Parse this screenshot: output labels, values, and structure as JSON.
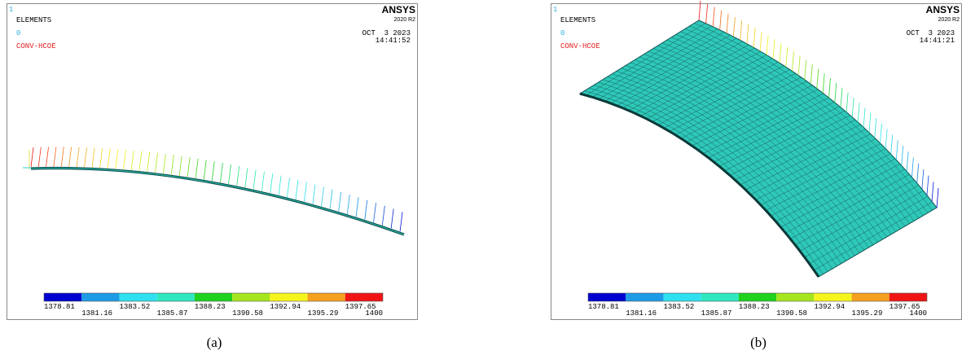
{
  "panels": [
    {
      "frame_number": "1",
      "title": "ELEMENTS",
      "step": "0",
      "label": "CONV-HCOE",
      "brand": "ANSYS",
      "version": "2020 R2",
      "date": "OCT  3 2023",
      "time": "14:41:52",
      "legend": {
        "labels": [
          1378.81,
          1381.16,
          1383.52,
          1385.87,
          1388.23,
          1390.58,
          1392.94,
          1395.29,
          1397.65,
          1400
        ],
        "colors": [
          "#0000d0",
          "#1e9be6",
          "#2fe0f0",
          "#2fe8c0",
          "#1ed21e",
          "#a6e61e",
          "#f5f51e",
          "#f5a01e",
          "#f01414"
        ]
      },
      "caption": "(a)"
    },
    {
      "frame_number": "1",
      "title": "ELEMENTS",
      "step": "0",
      "label": "CONV-HCOE",
      "brand": "ANSYS",
      "version": "2020 R2",
      "date": "OCT  3 2023",
      "time": "14:41:21",
      "legend": {
        "labels": [
          1378.81,
          1381.16,
          1383.52,
          1385.87,
          1388.23,
          1390.58,
          1392.94,
          1395.29,
          1397.65,
          1400
        ],
        "colors": [
          "#0000d0",
          "#1e9be6",
          "#2fe0f0",
          "#2fe8c0",
          "#1ed21e",
          "#a6e61e",
          "#f5f51e",
          "#f5a01e",
          "#f01414"
        ]
      },
      "caption": "(b)"
    }
  ]
}
